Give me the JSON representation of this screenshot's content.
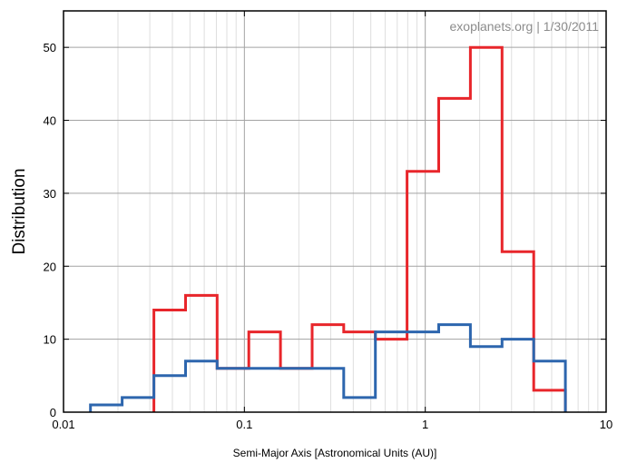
{
  "chart_data": {
    "type": "step",
    "x_scale": "log",
    "xlim": [
      0.01,
      10
    ],
    "ylim": [
      0,
      55
    ],
    "xlabel": "Semi-Major Axis [Astronomical Units (AU)]",
    "ylabel": "Distribution",
    "annotation": "exoplanets.org | 1/30/2011",
    "x_ticks": [
      {
        "value": 0.01,
        "label": "0.01"
      },
      {
        "value": 0.1,
        "label": "0.1"
      },
      {
        "value": 1,
        "label": "1"
      },
      {
        "value": 10,
        "label": "10"
      }
    ],
    "y_ticks": [
      {
        "value": 0,
        "label": "0"
      },
      {
        "value": 10,
        "label": "10"
      },
      {
        "value": 20,
        "label": "20"
      },
      {
        "value": 30,
        "label": "30"
      },
      {
        "value": 40,
        "label": "40"
      },
      {
        "value": 50,
        "label": "50"
      }
    ],
    "grid": true,
    "series": [
      {
        "color": "#e8262b",
        "bins": [
          {
            "x0": 0.0316,
            "x1": 0.0473,
            "y": 14
          },
          {
            "x0": 0.0473,
            "x1": 0.0707,
            "y": 16
          },
          {
            "x0": 0.0707,
            "x1": 0.1058,
            "y": 6
          },
          {
            "x0": 0.1058,
            "x1": 0.1583,
            "y": 11
          },
          {
            "x0": 0.1583,
            "x1": 0.2368,
            "y": 6
          },
          {
            "x0": 0.2368,
            "x1": 0.3543,
            "y": 12
          },
          {
            "x0": 0.3543,
            "x1": 0.5302,
            "y": 11
          },
          {
            "x0": 0.5302,
            "x1": 0.7933,
            "y": 10
          },
          {
            "x0": 0.7933,
            "x1": 1.187,
            "y": 33
          },
          {
            "x0": 1.187,
            "x1": 1.776,
            "y": 43
          },
          {
            "x0": 1.776,
            "x1": 2.658,
            "y": 50
          },
          {
            "x0": 2.658,
            "x1": 3.977,
            "y": 22
          },
          {
            "x0": 3.977,
            "x1": 5.95,
            "y": 3
          }
        ]
      },
      {
        "color": "#2d66ae",
        "bins": [
          {
            "x0": 0.0141,
            "x1": 0.0211,
            "y": 1
          },
          {
            "x0": 0.0211,
            "x1": 0.0316,
            "y": 2
          },
          {
            "x0": 0.0316,
            "x1": 0.0473,
            "y": 5
          },
          {
            "x0": 0.0473,
            "x1": 0.0707,
            "y": 7
          },
          {
            "x0": 0.0707,
            "x1": 0.1058,
            "y": 6
          },
          {
            "x0": 0.1058,
            "x1": 0.1583,
            "y": 6
          },
          {
            "x0": 0.1583,
            "x1": 0.2368,
            "y": 6
          },
          {
            "x0": 0.2368,
            "x1": 0.3543,
            "y": 6
          },
          {
            "x0": 0.3543,
            "x1": 0.5302,
            "y": 2
          },
          {
            "x0": 0.5302,
            "x1": 0.7933,
            "y": 11
          },
          {
            "x0": 0.7933,
            "x1": 1.187,
            "y": 11
          },
          {
            "x0": 1.187,
            "x1": 1.776,
            "y": 12
          },
          {
            "x0": 1.776,
            "x1": 2.658,
            "y": 9
          },
          {
            "x0": 2.658,
            "x1": 3.977,
            "y": 10
          },
          {
            "x0": 3.977,
            "x1": 5.95,
            "y": 7
          }
        ]
      }
    ]
  }
}
